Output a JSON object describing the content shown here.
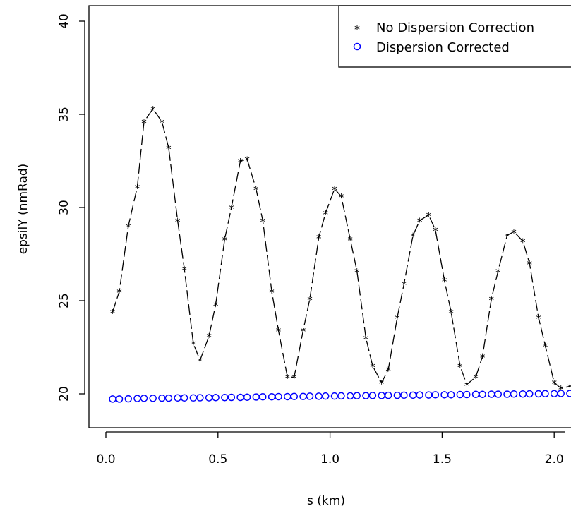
{
  "chart_data": {
    "type": "scatter",
    "xlabel": "s (km)",
    "ylabel": "epsilY (nmRad)",
    "xlim": [
      -0.06,
      2.08
    ],
    "ylim": [
      18.2,
      41.0
    ],
    "x_ticks": [
      "0.0",
      "0.5",
      "1.0",
      "1.5",
      "2.0"
    ],
    "y_ticks": [
      "20",
      "25",
      "30",
      "35",
      "40"
    ],
    "grid": false,
    "legend": {
      "placement": "top-right"
    },
    "series": [
      {
        "name": "No Dispersion Correction",
        "marker": "star",
        "line": "longdash",
        "color": "#000000",
        "x": [
          0.03,
          0.06,
          0.1,
          0.14,
          0.17,
          0.21,
          0.25,
          0.28,
          0.32,
          0.35,
          0.39,
          0.42,
          0.46,
          0.49,
          0.53,
          0.56,
          0.6,
          0.63,
          0.67,
          0.7,
          0.74,
          0.77,
          0.81,
          0.84,
          0.88,
          0.91,
          0.95,
          0.98,
          1.02,
          1.05,
          1.09,
          1.12,
          1.16,
          1.19,
          1.23,
          1.26,
          1.3,
          1.33,
          1.37,
          1.4,
          1.44,
          1.47,
          1.51,
          1.54,
          1.58,
          1.61,
          1.65,
          1.68,
          1.72,
          1.75,
          1.79,
          1.82,
          1.86,
          1.89,
          1.93,
          1.96,
          2.0,
          2.03,
          2.07
        ],
        "y": [
          24.4,
          25.5,
          29.0,
          31.1,
          34.6,
          35.3,
          34.6,
          33.2,
          29.3,
          26.7,
          22.7,
          21.8,
          23.1,
          24.8,
          28.3,
          30.0,
          32.5,
          32.6,
          31.0,
          29.3,
          25.5,
          23.4,
          20.9,
          20.9,
          23.4,
          25.1,
          28.4,
          29.7,
          31.0,
          30.6,
          28.3,
          26.6,
          23.0,
          21.5,
          20.6,
          21.3,
          24.1,
          25.9,
          28.5,
          29.3,
          29.6,
          28.8,
          26.1,
          24.4,
          21.5,
          20.5,
          20.9,
          22.0,
          25.1,
          26.6,
          28.5,
          28.7,
          28.2,
          27.0,
          24.1,
          22.6,
          20.6,
          20.3,
          20.4
        ]
      },
      {
        "name": "Dispersion Corrected",
        "marker": "circle",
        "color": "#0000ff",
        "x": [
          0.03,
          0.06,
          0.1,
          0.14,
          0.17,
          0.21,
          0.25,
          0.28,
          0.32,
          0.35,
          0.39,
          0.42,
          0.46,
          0.49,
          0.53,
          0.56,
          0.6,
          0.63,
          0.67,
          0.7,
          0.74,
          0.77,
          0.81,
          0.84,
          0.88,
          0.91,
          0.95,
          0.98,
          1.02,
          1.05,
          1.09,
          1.12,
          1.16,
          1.19,
          1.23,
          1.26,
          1.3,
          1.33,
          1.37,
          1.4,
          1.44,
          1.47,
          1.51,
          1.54,
          1.58,
          1.61,
          1.65,
          1.68,
          1.72,
          1.75,
          1.79,
          1.82,
          1.86,
          1.89,
          1.93,
          1.96,
          2.0,
          2.03,
          2.07
        ],
        "y": [
          19.72,
          19.72,
          19.73,
          19.75,
          19.76,
          19.76,
          19.77,
          19.77,
          19.78,
          19.78,
          19.78,
          19.79,
          19.79,
          19.8,
          19.8,
          19.81,
          19.81,
          19.82,
          19.83,
          19.84,
          19.84,
          19.85,
          19.85,
          19.86,
          19.86,
          19.87,
          19.87,
          19.88,
          19.88,
          19.89,
          19.89,
          19.9,
          19.9,
          19.91,
          19.91,
          19.92,
          19.92,
          19.93,
          19.93,
          19.94,
          19.94,
          19.95,
          19.95,
          19.95,
          19.96,
          19.96,
          19.97,
          19.97,
          19.98,
          19.98,
          19.98,
          19.99,
          19.99,
          20.0,
          20.0,
          20.01,
          20.01,
          20.02,
          20.02
        ]
      }
    ]
  }
}
